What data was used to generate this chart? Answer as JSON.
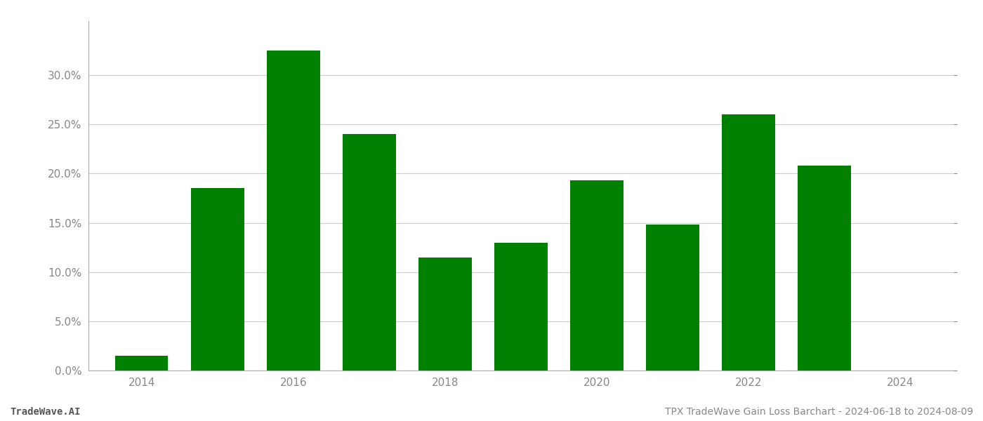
{
  "years": [
    2014,
    2015,
    2016,
    2017,
    2018,
    2019,
    2020,
    2021,
    2022,
    2023
  ],
  "values": [
    0.015,
    0.185,
    0.325,
    0.24,
    0.115,
    0.13,
    0.193,
    0.148,
    0.26,
    0.208
  ],
  "bar_color": "#008000",
  "background_color": "#ffffff",
  "ylabel_ticks": [
    0.0,
    0.05,
    0.1,
    0.15,
    0.2,
    0.25,
    0.3
  ],
  "ylim": [
    0,
    0.355
  ],
  "xlim": [
    2013.3,
    2024.7
  ],
  "footer_left": "TradeWave.AI",
  "footer_right": "TPX TradeWave Gain Loss Barchart - 2024-06-18 to 2024-08-09",
  "xticks": [
    2014,
    2016,
    2018,
    2020,
    2022,
    2024
  ],
  "grid_color": "#cccccc",
  "bar_width": 0.7,
  "footer_fontsize": 10,
  "tick_fontsize": 11
}
